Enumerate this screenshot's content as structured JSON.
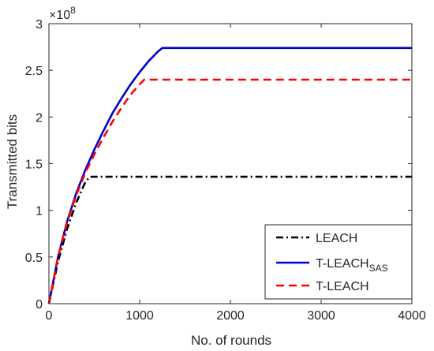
{
  "chart_data": {
    "type": "line",
    "xlabel": "No. of rounds",
    "ylabel": "Transmitted bits",
    "y_multiplier_label": "×10",
    "y_multiplier_exp": "8",
    "xlim": [
      0,
      4000
    ],
    "ylim": [
      0,
      3
    ],
    "x_ticks": [
      0,
      1000,
      2000,
      3000,
      4000
    ],
    "x_tick_labels": [
      "0",
      "1000",
      "2000",
      "3000",
      "4000"
    ],
    "y_ticks": [
      0,
      0.5,
      1,
      1.5,
      2,
      2.5,
      3
    ],
    "y_tick_labels": [
      "0",
      "0.5",
      "1",
      "1.5",
      "2",
      "2.5",
      "3"
    ],
    "grid": false,
    "legend_position": "bottom-right",
    "series": [
      {
        "name": "LEACH",
        "color": "#000000",
        "dash": "dash-dot",
        "x": [
          0,
          100,
          200,
          300,
          400,
          450,
          1000,
          2000,
          3000,
          4000
        ],
        "y": [
          0,
          0.45,
          0.8,
          1.08,
          1.3,
          1.36,
          1.36,
          1.36,
          1.36,
          1.36
        ]
      },
      {
        "name": "T-LEACH",
        "name_sub": "SAS",
        "color": "#0000cc",
        "dash": "solid",
        "x": [
          0,
          100,
          200,
          300,
          400,
          500,
          600,
          700,
          800,
          900,
          1000,
          1100,
          1200,
          1250,
          2000,
          3000,
          4000
        ],
        "y": [
          0,
          0.5,
          0.88,
          1.18,
          1.43,
          1.65,
          1.85,
          2.04,
          2.2,
          2.35,
          2.48,
          2.6,
          2.7,
          2.74,
          2.74,
          2.74,
          2.74
        ]
      },
      {
        "name": "T-LEACH",
        "color": "#ff0000",
        "dash": "dashed",
        "x": [
          0,
          100,
          200,
          300,
          400,
          500,
          600,
          700,
          800,
          900,
          1000,
          1050,
          2000,
          3000,
          4000
        ],
        "y": [
          0,
          0.5,
          0.87,
          1.16,
          1.4,
          1.6,
          1.78,
          1.95,
          2.1,
          2.24,
          2.35,
          2.4,
          2.4,
          2.4,
          2.4
        ]
      }
    ]
  }
}
